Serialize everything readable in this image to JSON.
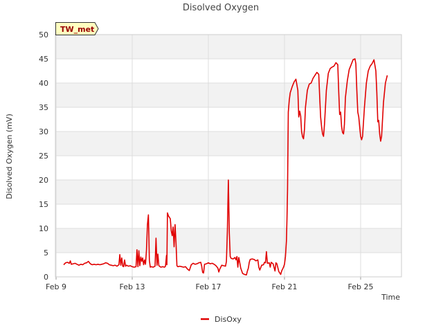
{
  "chart_data": {
    "type": "line",
    "title": "Disolved Oxygen",
    "xlabel": "Time",
    "ylabel": "Disolved Oxygen (mV)",
    "site_badge": "TW_met",
    "xlim": [
      9,
      26.4
    ],
    "ylim": [
      0,
      50
    ],
    "x_ticks": [
      {
        "value": 9,
        "label": "Feb 9"
      },
      {
        "value": 13,
        "label": "Feb 13"
      },
      {
        "value": 17,
        "label": "Feb 17"
      },
      {
        "value": 21,
        "label": "Feb 21"
      },
      {
        "value": 25,
        "label": "Feb 25"
      }
    ],
    "y_ticks": [
      0,
      5,
      10,
      15,
      20,
      25,
      30,
      35,
      40,
      45,
      50
    ],
    "grid": true,
    "legend_position": "bottom-center",
    "series": [
      {
        "name": "DisOxy",
        "color": "#e00000",
        "points": [
          [
            9.4,
            2.5
          ],
          [
            9.5,
            2.9
          ],
          [
            9.6,
            3.0
          ],
          [
            9.7,
            2.8
          ],
          [
            9.75,
            3.3
          ],
          [
            9.8,
            2.6
          ],
          [
            9.9,
            2.7
          ],
          [
            10.0,
            2.8
          ],
          [
            10.1,
            2.6
          ],
          [
            10.2,
            2.4
          ],
          [
            10.3,
            2.6
          ],
          [
            10.4,
            2.5
          ],
          [
            10.5,
            2.8
          ],
          [
            10.6,
            2.9
          ],
          [
            10.7,
            3.2
          ],
          [
            10.8,
            2.7
          ],
          [
            10.9,
            2.5
          ],
          [
            11.0,
            2.6
          ],
          [
            11.1,
            2.5
          ],
          [
            11.2,
            2.6
          ],
          [
            11.3,
            2.5
          ],
          [
            11.4,
            2.6
          ],
          [
            11.5,
            2.7
          ],
          [
            11.6,
            2.9
          ],
          [
            11.7,
            2.8
          ],
          [
            11.8,
            2.5
          ],
          [
            11.9,
            2.4
          ],
          [
            12.0,
            2.3
          ],
          [
            12.1,
            2.4
          ],
          [
            12.2,
            2.2
          ],
          [
            12.3,
            2.5
          ],
          [
            12.35,
            4.6
          ],
          [
            12.4,
            2.4
          ],
          [
            12.45,
            3.9
          ],
          [
            12.5,
            2.2
          ],
          [
            12.55,
            2.1
          ],
          [
            12.6,
            3.5
          ],
          [
            12.65,
            2.2
          ],
          [
            12.7,
            2.4
          ],
          [
            12.8,
            2.2
          ],
          [
            12.9,
            2.3
          ],
          [
            13.0,
            2.1
          ],
          [
            13.1,
            2.0
          ],
          [
            13.2,
            2.1
          ],
          [
            13.25,
            5.6
          ],
          [
            13.3,
            2.1
          ],
          [
            13.35,
            5.4
          ],
          [
            13.4,
            2.3
          ],
          [
            13.45,
            4.1
          ],
          [
            13.5,
            3.2
          ],
          [
            13.55,
            3.9
          ],
          [
            13.6,
            2.5
          ],
          [
            13.65,
            3.5
          ],
          [
            13.7,
            2.6
          ],
          [
            13.75,
            5.5
          ],
          [
            13.8,
            10.8
          ],
          [
            13.85,
            12.8
          ],
          [
            13.9,
            3.4
          ],
          [
            13.95,
            2.0
          ],
          [
            14.0,
            2.1
          ],
          [
            14.1,
            2.0
          ],
          [
            14.2,
            2.2
          ],
          [
            14.25,
            8.0
          ],
          [
            14.3,
            2.4
          ],
          [
            14.35,
            4.7
          ],
          [
            14.4,
            2.3
          ],
          [
            14.5,
            2.0
          ],
          [
            14.6,
            2.1
          ],
          [
            14.7,
            2.0
          ],
          [
            14.75,
            2.2
          ],
          [
            14.8,
            4.4
          ],
          [
            14.82,
            2.5
          ],
          [
            14.85,
            13.2
          ],
          [
            14.9,
            12.6
          ],
          [
            15.0,
            12.0
          ],
          [
            15.05,
            9.5
          ],
          [
            15.1,
            8.5
          ],
          [
            15.15,
            10.3
          ],
          [
            15.2,
            6.2
          ],
          [
            15.25,
            10.8
          ],
          [
            15.3,
            7.0
          ],
          [
            15.35,
            2.3
          ],
          [
            15.4,
            2.1
          ],
          [
            15.5,
            2.2
          ],
          [
            15.6,
            2.1
          ],
          [
            15.7,
            2.0
          ],
          [
            15.8,
            2.1
          ],
          [
            15.9,
            1.6
          ],
          [
            16.0,
            1.3
          ],
          [
            16.1,
            2.5
          ],
          [
            16.2,
            2.8
          ],
          [
            16.3,
            2.6
          ],
          [
            16.4,
            2.7
          ],
          [
            16.5,
            2.9
          ],
          [
            16.6,
            3.0
          ],
          [
            16.65,
            2.2
          ],
          [
            16.7,
            0.9
          ],
          [
            16.75,
            0.8
          ],
          [
            16.8,
            2.6
          ],
          [
            16.9,
            2.7
          ],
          [
            17.0,
            2.9
          ],
          [
            17.1,
            2.7
          ],
          [
            17.2,
            2.8
          ],
          [
            17.3,
            2.6
          ],
          [
            17.4,
            2.3
          ],
          [
            17.5,
            1.8
          ],
          [
            17.55,
            1.0
          ],
          [
            17.6,
            1.6
          ],
          [
            17.7,
            2.4
          ],
          [
            17.8,
            2.3
          ],
          [
            17.9,
            2.2
          ],
          [
            17.95,
            3.2
          ],
          [
            18.0,
            9.5
          ],
          [
            18.05,
            20.0
          ],
          [
            18.1,
            9.0
          ],
          [
            18.15,
            4.2
          ],
          [
            18.2,
            3.8
          ],
          [
            18.3,
            3.7
          ],
          [
            18.4,
            4.0
          ],
          [
            18.45,
            3.5
          ],
          [
            18.5,
            4.2
          ],
          [
            18.55,
            2.0
          ],
          [
            18.6,
            4.0
          ],
          [
            18.7,
            1.8
          ],
          [
            18.8,
            0.7
          ],
          [
            18.9,
            0.5
          ],
          [
            19.0,
            0.4
          ],
          [
            19.05,
            1.2
          ],
          [
            19.1,
            1.8
          ],
          [
            19.15,
            3.0
          ],
          [
            19.2,
            3.6
          ],
          [
            19.3,
            3.7
          ],
          [
            19.4,
            3.6
          ],
          [
            19.5,
            3.3
          ],
          [
            19.6,
            3.5
          ],
          [
            19.65,
            2.0
          ],
          [
            19.7,
            1.4
          ],
          [
            19.8,
            2.4
          ],
          [
            19.9,
            2.5
          ],
          [
            19.95,
            3.0
          ],
          [
            20.0,
            2.9
          ],
          [
            20.05,
            5.2
          ],
          [
            20.1,
            2.8
          ],
          [
            20.2,
            2.9
          ],
          [
            20.25,
            2.0
          ],
          [
            20.3,
            3.0
          ],
          [
            20.4,
            2.7
          ],
          [
            20.5,
            1.2
          ],
          [
            20.55,
            2.9
          ],
          [
            20.6,
            2.7
          ],
          [
            20.7,
            1.1
          ],
          [
            20.8,
            0.5
          ],
          [
            20.85,
            1.2
          ],
          [
            20.9,
            1.6
          ],
          [
            20.95,
            2.0
          ],
          [
            21.0,
            2.6
          ],
          [
            21.05,
            4.2
          ],
          [
            21.1,
            7.4
          ],
          [
            21.13,
            12.0
          ],
          [
            21.16,
            18.0
          ],
          [
            21.2,
            34.0
          ],
          [
            21.25,
            36.5
          ],
          [
            21.3,
            38.0
          ],
          [
            21.4,
            39.2
          ],
          [
            21.5,
            40.2
          ],
          [
            21.6,
            40.8
          ],
          [
            21.7,
            38.5
          ],
          [
            21.75,
            33.0
          ],
          [
            21.8,
            34.2
          ],
          [
            21.85,
            33.2
          ],
          [
            21.9,
            30.0
          ],
          [
            21.95,
            28.9
          ],
          [
            22.0,
            28.5
          ],
          [
            22.05,
            30.5
          ],
          [
            22.1,
            35.0
          ],
          [
            22.2,
            38.5
          ],
          [
            22.3,
            39.8
          ],
          [
            22.4,
            40.0
          ],
          [
            22.5,
            41.0
          ],
          [
            22.6,
            41.6
          ],
          [
            22.7,
            42.2
          ],
          [
            22.8,
            41.8
          ],
          [
            22.85,
            37.0
          ],
          [
            22.9,
            33.0
          ],
          [
            22.95,
            31.0
          ],
          [
            23.0,
            29.5
          ],
          [
            23.05,
            29.0
          ],
          [
            23.1,
            31.5
          ],
          [
            23.2,
            38.5
          ],
          [
            23.3,
            42.0
          ],
          [
            23.4,
            43.0
          ],
          [
            23.5,
            43.3
          ],
          [
            23.6,
            43.5
          ],
          [
            23.7,
            44.2
          ],
          [
            23.8,
            43.8
          ],
          [
            23.85,
            38.0
          ],
          [
            23.9,
            33.5
          ],
          [
            23.95,
            34.0
          ],
          [
            24.0,
            31.0
          ],
          [
            24.05,
            29.8
          ],
          [
            24.1,
            29.5
          ],
          [
            24.15,
            31.5
          ],
          [
            24.2,
            37.0
          ],
          [
            24.3,
            40.5
          ],
          [
            24.4,
            42.8
          ],
          [
            24.5,
            43.8
          ],
          [
            24.6,
            44.8
          ],
          [
            24.7,
            45.0
          ],
          [
            24.75,
            44.0
          ],
          [
            24.8,
            38.5
          ],
          [
            24.85,
            34.0
          ],
          [
            24.9,
            33.0
          ],
          [
            24.95,
            31.0
          ],
          [
            25.0,
            29.0
          ],
          [
            25.05,
            28.3
          ],
          [
            25.1,
            29.0
          ],
          [
            25.2,
            35.0
          ],
          [
            25.3,
            40.0
          ],
          [
            25.4,
            42.5
          ],
          [
            25.5,
            43.5
          ],
          [
            25.6,
            44.0
          ],
          [
            25.7,
            44.8
          ],
          [
            25.8,
            42.5
          ],
          [
            25.85,
            38.0
          ],
          [
            25.9,
            32.0
          ],
          [
            25.95,
            32.3
          ],
          [
            26.0,
            29.5
          ],
          [
            26.05,
            28.0
          ],
          [
            26.1,
            29.0
          ],
          [
            26.2,
            36.0
          ],
          [
            26.3,
            40.0
          ],
          [
            26.4,
            41.6
          ]
        ]
      }
    ]
  }
}
